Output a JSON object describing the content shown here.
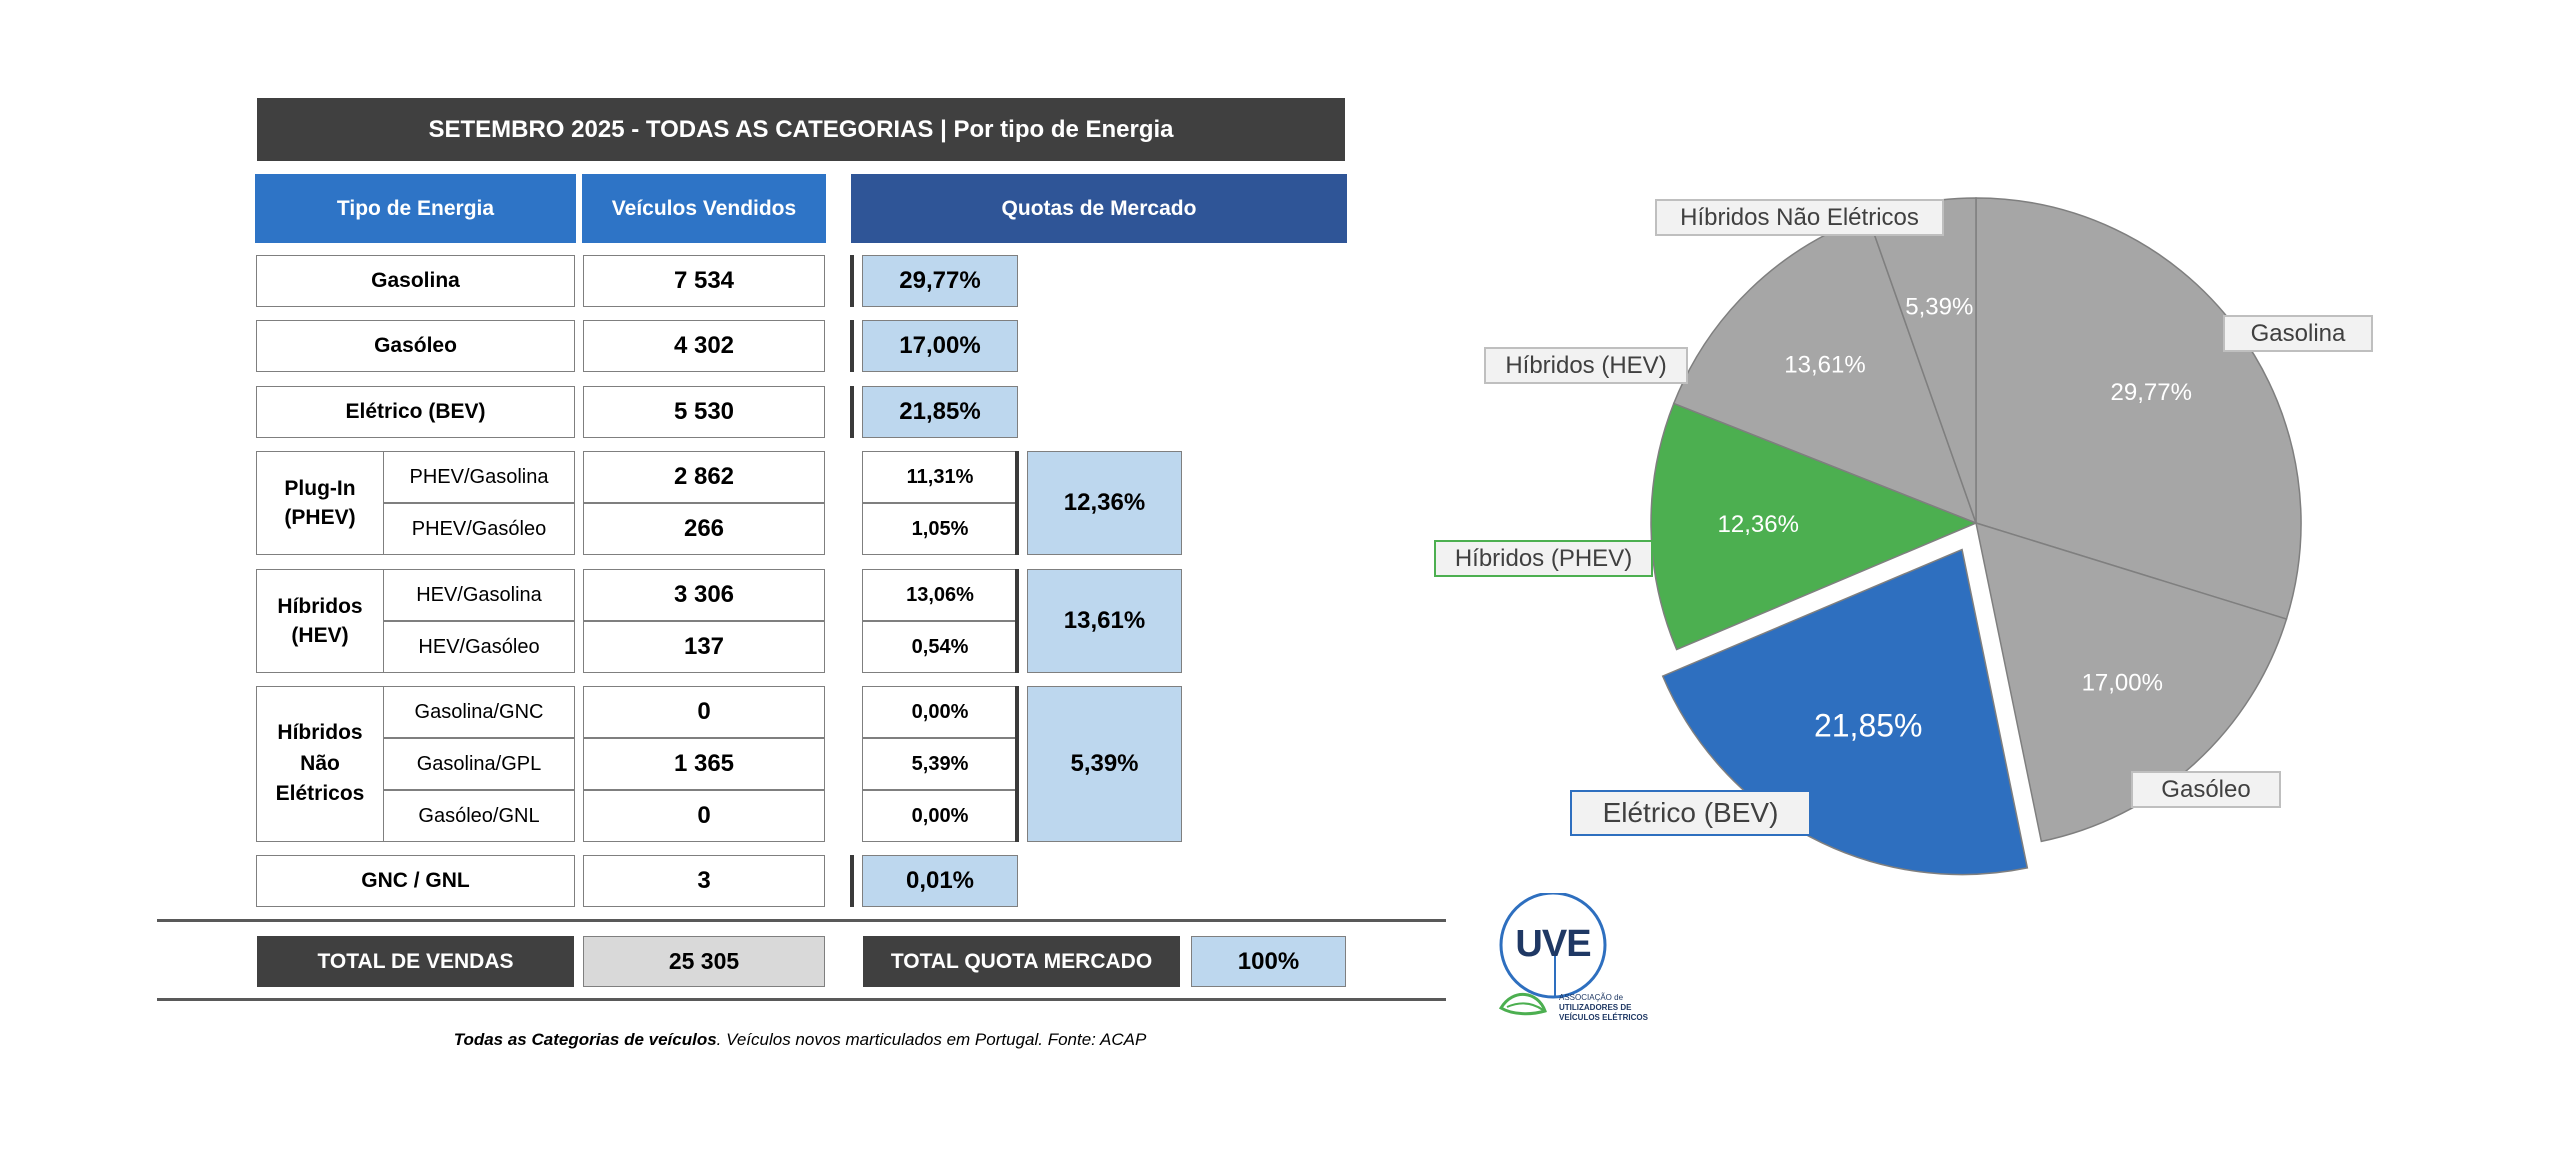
{
  "title": "SETEMBRO 2025  - TODAS AS CATEGORIAS | Por tipo de Energia",
  "headers": {
    "tipo": "Tipo de Energia",
    "vendidos": "Veículos Vendidos",
    "quotas": "Quotas de Mercado"
  },
  "rows": {
    "gasolina": {
      "label": "Gasolina",
      "sold": "7 534",
      "share": "29,77%"
    },
    "gasoleo": {
      "label": "Gasóleo",
      "sold": "4 302",
      "share": "17,00%"
    },
    "bev": {
      "label": "Elétrico (BEV)",
      "sold": "5 530",
      "share": "21,85%"
    },
    "phev": {
      "group": "Plug-In (PHEV)",
      "group_total": "12,36%",
      "items": [
        {
          "label": "PHEV/Gasolina",
          "sold": "2 862",
          "share": "11,31%"
        },
        {
          "label": "PHEV/Gasóleo",
          "sold": "266",
          "share": "1,05%"
        }
      ]
    },
    "hev": {
      "group": "Híbridos (HEV)",
      "group_total": "13,61%",
      "items": [
        {
          "label": "HEV/Gasolina",
          "sold": "3 306",
          "share": "13,06%"
        },
        {
          "label": "HEV/Gasóleo",
          "sold": "137",
          "share": "0,54%"
        }
      ]
    },
    "hne": {
      "group": "Híbridos Não Elétricos",
      "group_total": "5,39%",
      "items": [
        {
          "label": "Gasolina/GNC",
          "sold": "0",
          "share": "0,00%"
        },
        {
          "label": "Gasolina/GPL",
          "sold": "1 365",
          "share": "5,39%"
        },
        {
          "label": "Gasóleo/GNL",
          "sold": "0",
          "share": "0,00%"
        }
      ]
    },
    "gnc": {
      "label": "GNC / GNL",
      "sold": "3",
      "share": "0,01%"
    }
  },
  "totals": {
    "vendas_label": "TOTAL DE VENDAS",
    "vendas_value": "25 305",
    "quota_label": "TOTAL QUOTA MERCADO",
    "quota_value": "100%"
  },
  "footnote": {
    "bold": "Todas as Categorias de veículos",
    "rest": ". Veículos novos marticulados em Portugal. Fonte: ACAP"
  },
  "logo": {
    "mark": "UVE",
    "line1": "ASSOCIAÇÃO de",
    "line2": "UTILIZADORES DE",
    "line3": "VEÍCULOS ELÉTRICOS"
  },
  "colors": {
    "dark": "#404040",
    "header_blue": "#2e74c6",
    "header_navy": "#2f5597",
    "share_fill": "#bdd7ee",
    "pie_grey": "#a6a6a6",
    "pie_green": "#4caf50",
    "pie_blue": "#2e6fbf"
  },
  "chart_data": {
    "type": "pie",
    "title": "",
    "slices": [
      {
        "name": "Gasolina",
        "value": 29.77,
        "label": "29,77%",
        "color": "#a6a6a6"
      },
      {
        "name": "Gasóleo",
        "value": 17.0,
        "label": "17,00%",
        "color": "#a6a6a6"
      },
      {
        "name": "Elétrico (BEV)",
        "value": 21.85,
        "label": "21,85%",
        "color": "#2e6fbf",
        "exploded": true
      },
      {
        "name": "Híbridos (PHEV)",
        "value": 12.36,
        "label": "12,36%",
        "color": "#4caf50"
      },
      {
        "name": "Híbridos (HEV)",
        "value": 13.61,
        "label": "13,61%",
        "color": "#a6a6a6"
      },
      {
        "name": "Híbridos Não Elétricos",
        "value": 5.39,
        "label": "5,39%",
        "color": "#a6a6a6"
      }
    ],
    "start": "12 o'clock",
    "direction": "clockwise"
  }
}
